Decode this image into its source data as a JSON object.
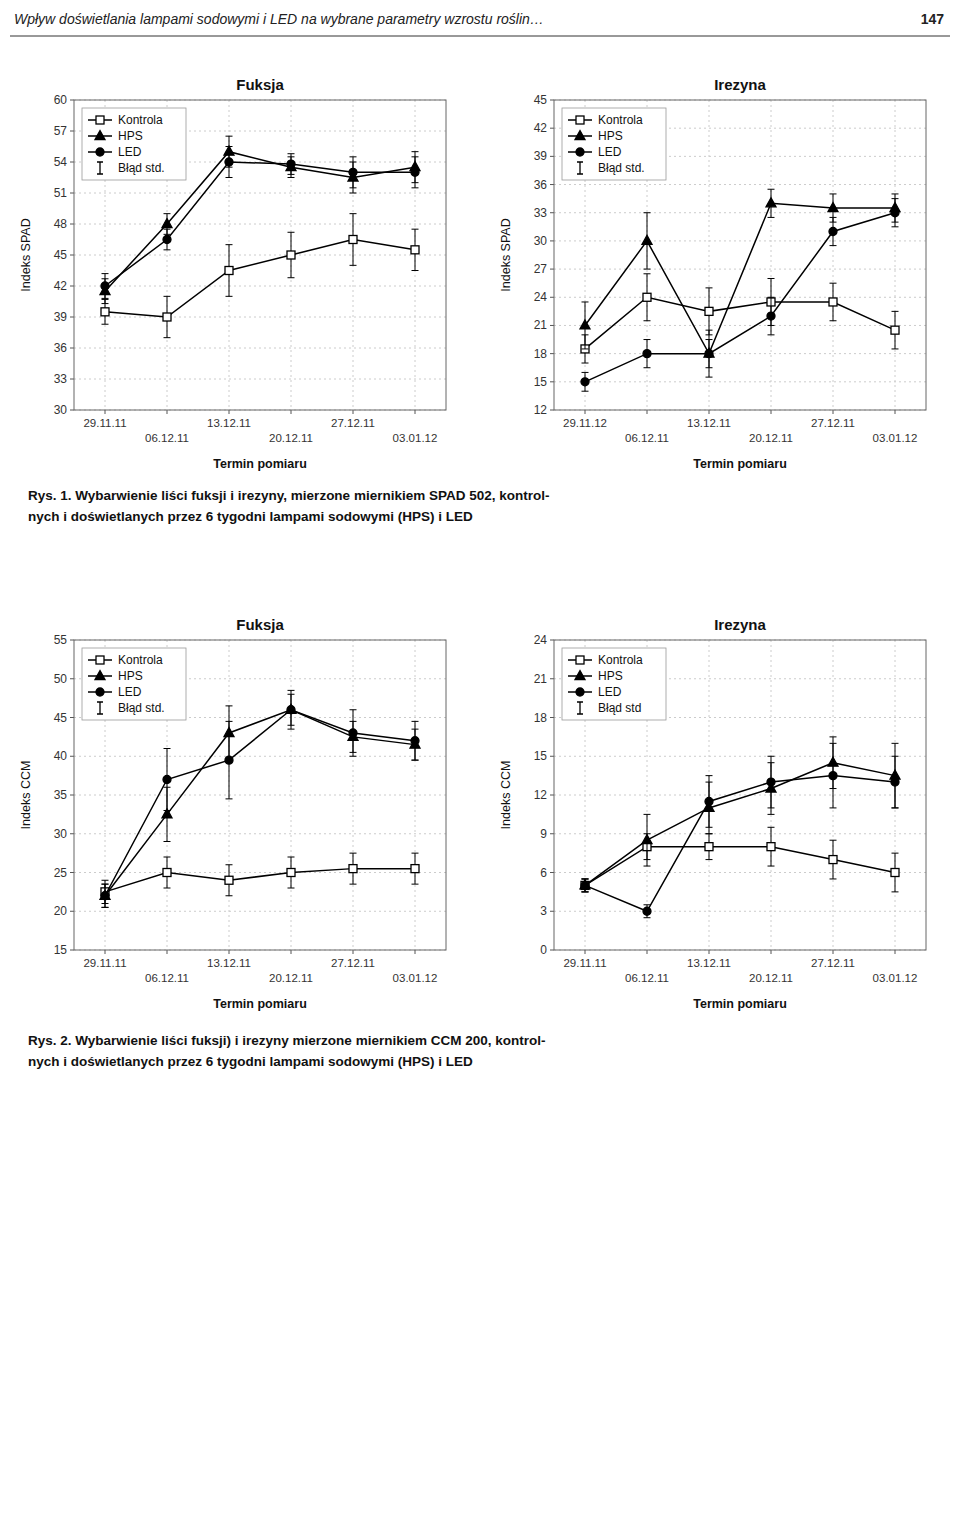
{
  "header": "Wpływ doświetlania lampami sodowymi i LED na wybrane parametry wzrostu roślin…",
  "page": "147",
  "captions": [
    [
      "Rys. 1. Wybarwienie liści fuksji i irezyny, mierzone miernikiem SPAD 502, kontrol-",
      "nych i doświetlanych przez 6 tygodni lampami sodowymi (HPS) i LED"
    ],
    [
      "Rys. 2. Wybarwienie liści fuksji) i irezyny mierzone miernikiem CCM 200, kontrol-",
      "nych i doświetlanych przez 6 tygodni lampami sodowymi (HPS) i LED"
    ]
  ],
  "chart_data": [
    {
      "type": "line",
      "title": "Fuksja",
      "x_label": "Termin pomiaru",
      "y_label": "Indeks SPAD",
      "categories": [
        "29.11.11",
        "06.12.11",
        "13.12.11",
        "20.12.11",
        "27.12.11",
        "03.01.12"
      ],
      "ylim": [
        30,
        60
      ],
      "yticks": [
        30,
        33,
        36,
        39,
        42,
        45,
        48,
        51,
        54,
        57,
        60
      ],
      "grid": true,
      "legend": "upper left",
      "error_bar_label": "Błąd std.",
      "series": [
        {
          "name": "Kontrola",
          "color": "#000000",
          "marker": "square-open",
          "values": [
            39.5,
            39.0,
            43.5,
            45.0,
            46.5,
            45.5
          ],
          "errors": [
            1.2,
            2.0,
            2.5,
            2.2,
            2.5,
            2.0
          ]
        },
        {
          "name": "HPS",
          "color": "#000000",
          "marker": "triangle",
          "values": [
            41.5,
            48.0,
            55.0,
            53.5,
            52.5,
            53.5
          ],
          "errors": [
            1.2,
            1.0,
            1.5,
            1.0,
            1.5,
            1.5
          ]
        },
        {
          "name": "LED",
          "color": "#000000",
          "marker": "circle",
          "values": [
            42.0,
            46.5,
            54.0,
            53.8,
            53.0,
            53.0
          ],
          "errors": [
            1.2,
            1.0,
            1.5,
            1.0,
            1.5,
            1.5
          ]
        }
      ]
    },
    {
      "type": "line",
      "title": "Irezyna",
      "x_label": "Termin pomiaru",
      "y_label": "Indeks SPAD",
      "categories": [
        "29.11.12",
        "06.12.11",
        "13.12.11",
        "20.12.11",
        "27.12.11",
        "03.01.12"
      ],
      "ylim": [
        12,
        45
      ],
      "yticks": [
        12,
        15,
        18,
        21,
        24,
        27,
        30,
        33,
        36,
        39,
        42,
        45
      ],
      "grid": true,
      "legend": "upper left",
      "error_bar_label": "Błąd std.",
      "series": [
        {
          "name": "Kontrola",
          "color": "#000000",
          "marker": "square-open",
          "values": [
            18.5,
            24.0,
            22.5,
            23.5,
            23.5,
            20.5
          ],
          "errors": [
            1.5,
            2.5,
            2.5,
            2.5,
            2.0,
            2.0
          ]
        },
        {
          "name": "HPS",
          "color": "#000000",
          "marker": "triangle",
          "values": [
            21.0,
            30.0,
            18.0,
            34.0,
            33.5,
            33.5
          ],
          "errors": [
            2.5,
            3.0,
            2.5,
            1.5,
            1.5,
            1.5
          ]
        },
        {
          "name": "LED",
          "color": "#000000",
          "marker": "circle",
          "values": [
            15.0,
            18.0,
            18.0,
            22.0,
            31.0,
            33.0
          ],
          "errors": [
            1.0,
            1.5,
            1.5,
            2.0,
            1.5,
            1.5
          ]
        }
      ]
    },
    {
      "type": "line",
      "title": "Fuksja",
      "x_label": "Termin pomiaru",
      "y_label": "Indeks CCM",
      "categories": [
        "29.11.11",
        "06.12.11",
        "13.12.11",
        "20.12.11",
        "27.12.11",
        "03.01.12"
      ],
      "ylim": [
        15,
        55
      ],
      "yticks": [
        15,
        20,
        25,
        30,
        35,
        40,
        45,
        50,
        55
      ],
      "grid": true,
      "legend": "upper left",
      "error_bar_label": "Błąd std.",
      "series": [
        {
          "name": "Kontrola",
          "color": "#000000",
          "marker": "square-open",
          "values": [
            22.5,
            25.0,
            24.0,
            25.0,
            25.5,
            25.5
          ],
          "errors": [
            1.5,
            2.0,
            2.0,
            2.0,
            2.0,
            2.0
          ]
        },
        {
          "name": "HPS",
          "color": "#000000",
          "marker": "triangle",
          "values": [
            22.0,
            32.5,
            43.0,
            46.0,
            42.5,
            41.5
          ],
          "errors": [
            1.5,
            3.5,
            3.5,
            2.0,
            2.0,
            2.0
          ]
        },
        {
          "name": "LED",
          "color": "#000000",
          "marker": "circle",
          "values": [
            22.0,
            37.0,
            39.5,
            46.0,
            43.0,
            42.0
          ],
          "errors": [
            1.5,
            4.0,
            5.0,
            2.5,
            3.0,
            2.5
          ]
        }
      ]
    },
    {
      "type": "line",
      "title": "Irezyna",
      "x_label": "Termin pomiaru",
      "y_label": "Indeks CCM",
      "categories": [
        "29.11.11",
        "06.12.11",
        "13.12.11",
        "20.12.11",
        "27.12.11",
        "03.01.12"
      ],
      "ylim": [
        0,
        24
      ],
      "yticks": [
        0,
        3,
        6,
        9,
        12,
        15,
        18,
        21,
        24
      ],
      "grid": true,
      "legend": "upper left",
      "error_bar_label": "Błąd std",
      "series": [
        {
          "name": "Kontrola",
          "color": "#000000",
          "marker": "square-open",
          "values": [
            5.0,
            8.0,
            8.0,
            8.0,
            7.0,
            6.0
          ],
          "errors": [
            0.5,
            1.0,
            1.0,
            1.5,
            1.5,
            1.5
          ]
        },
        {
          "name": "HPS",
          "color": "#000000",
          "marker": "triangle",
          "values": [
            5.0,
            8.5,
            11.0,
            12.5,
            14.5,
            13.5
          ],
          "errors": [
            0.5,
            2.0,
            2.0,
            2.0,
            2.0,
            2.5
          ]
        },
        {
          "name": "LED",
          "color": "#000000",
          "marker": "circle",
          "values": [
            5.0,
            3.0,
            11.5,
            13.0,
            13.5,
            13.0
          ],
          "errors": [
            0.5,
            0.5,
            2.0,
            2.0,
            2.5,
            2.0
          ]
        }
      ]
    }
  ]
}
